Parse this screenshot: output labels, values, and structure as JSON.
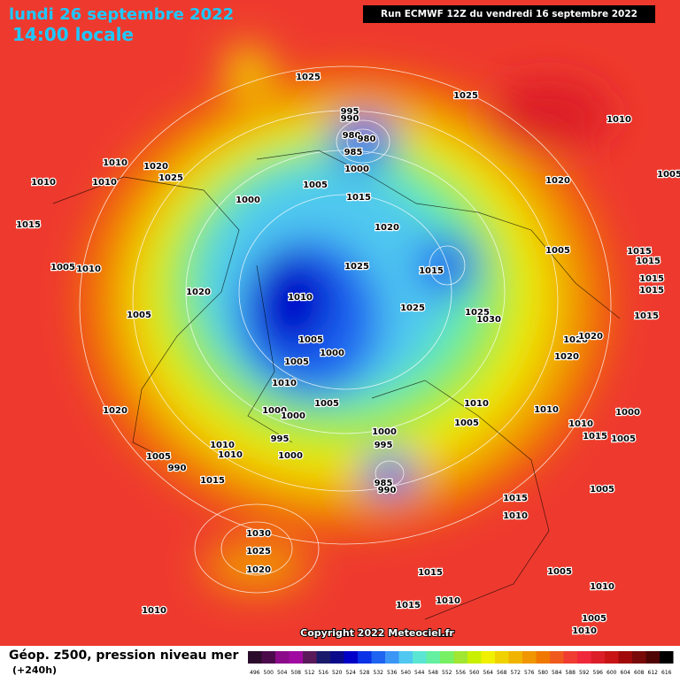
{
  "header": {
    "title": "lundi 26 septembre 2022",
    "subtitle": "14:00 locale",
    "run": "Run ECMWF 12Z du vendredi 16 septembre 2022"
  },
  "footer": {
    "label": "Géop. z500, pression niveau mer",
    "lead": "(+240h)",
    "copyright": "Copyright 2022 Meteociel.fr"
  },
  "legend": {
    "ticks": [
      496,
      500,
      504,
      508,
      512,
      516,
      520,
      524,
      528,
      532,
      536,
      540,
      544,
      548,
      552,
      556,
      560,
      564,
      568,
      572,
      576,
      580,
      584,
      588,
      592,
      596,
      600,
      604,
      608,
      612,
      616
    ],
    "colors": [
      "#2b0b2b",
      "#4b0b4b",
      "#8b0b8b",
      "#a00aa0",
      "#5a1a5a",
      "#1a1a6a",
      "#0a0a8a",
      "#0000c8",
      "#0a32e6",
      "#1e64f0",
      "#3c96f5",
      "#50c8f0",
      "#5ae6d2",
      "#64f0a0",
      "#78f064",
      "#a0e632",
      "#c8f000",
      "#f0f000",
      "#f0d200",
      "#f0b400",
      "#f09600",
      "#f07800",
      "#f05a1e",
      "#f03c32",
      "#f0283c",
      "#dc1e28",
      "#c81414",
      "#a00a0a",
      "#780a0a",
      "#500505",
      "#000000"
    ]
  },
  "isobars": [
    1025,
    1025,
    995,
    990,
    980,
    980,
    985,
    1000,
    1010,
    1010,
    1020,
    1025,
    1010,
    1010,
    1005,
    1000,
    1015,
    1020,
    1005,
    1020,
    1015,
    1005,
    1015,
    1015,
    1005,
    1010,
    1025,
    1015,
    1015,
    1015,
    1020,
    1010,
    1025,
    1025,
    1030,
    1005,
    1015,
    1005,
    1000,
    1020,
    1020,
    1020,
    1005,
    1010,
    1005,
    1010,
    1010,
    1020,
    1000,
    1000,
    1005,
    1000,
    1010,
    995,
    1000,
    995,
    1015,
    1005,
    1010,
    1010,
    1000,
    1005,
    990,
    1015,
    985,
    990,
    1005,
    1015,
    1010,
    1030,
    1025,
    1020,
    1015,
    1005,
    1010,
    1015,
    1010,
    1010,
    1005,
    1010
  ]
}
